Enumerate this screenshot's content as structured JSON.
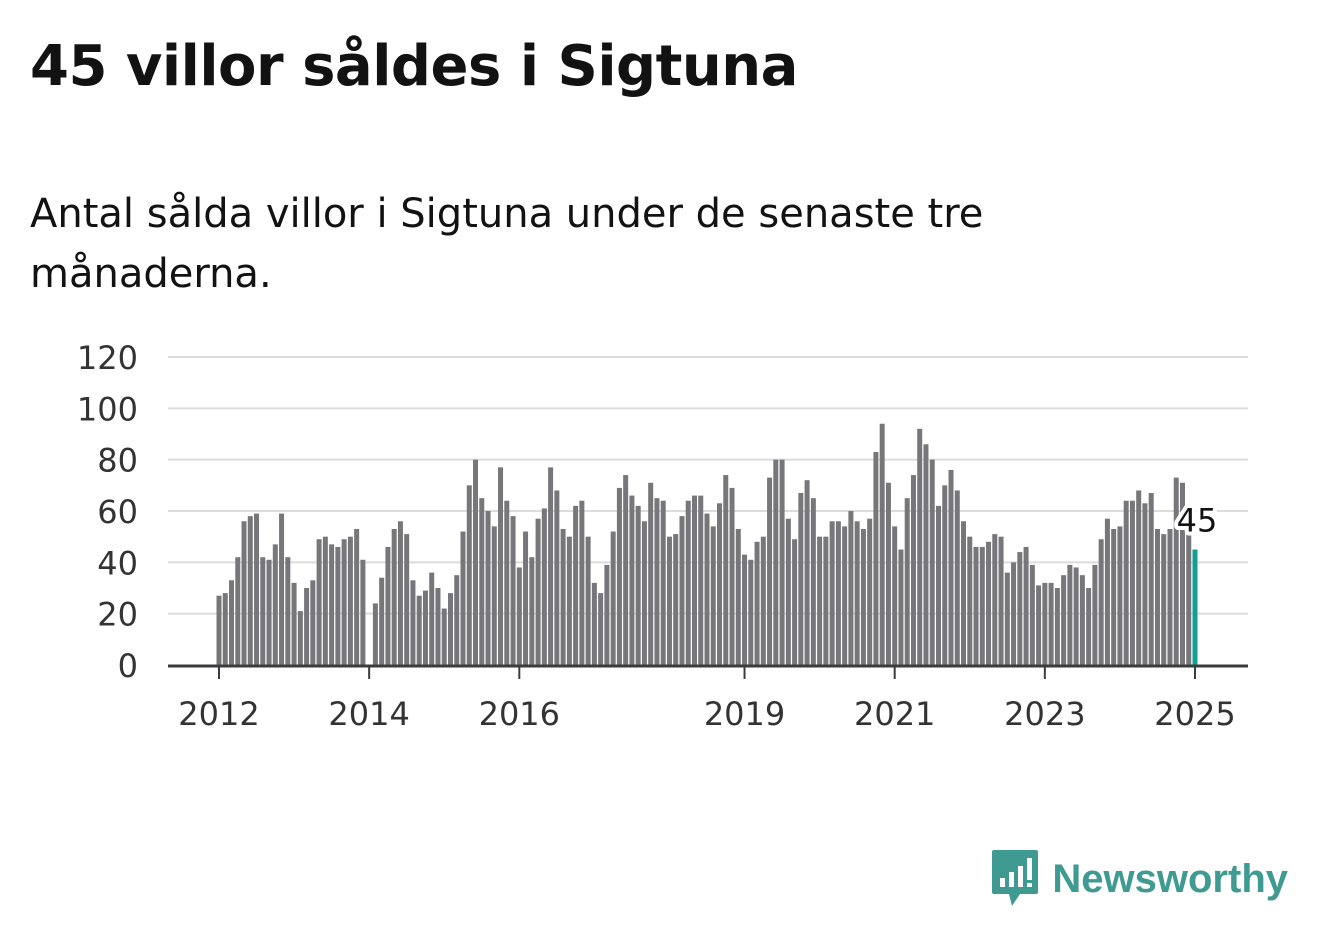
{
  "header": {
    "title": "45 villor såldes i Sigtuna",
    "subtitle": "Antal sålda villor i Sigtuna under de senaste tre månaderna."
  },
  "brand": {
    "name": "Newsworthy",
    "icon": "newsworthy-logo-icon",
    "color": "#3f9a92"
  },
  "colors": {
    "bar": "#77767a",
    "highlight": "#119f96",
    "grid": "#dcdcdc",
    "axis": "#3c3c3c",
    "text": "#333333"
  },
  "chart_data": {
    "type": "bar",
    "title": "45 villor såldes i Sigtuna",
    "subtitle": "Antal sålda villor i Sigtuna under de senaste tre månaderna.",
    "xlabel": "",
    "ylabel": "",
    "ylim": [
      0,
      120
    ],
    "yticks": [
      0,
      20,
      40,
      60,
      80,
      100,
      120
    ],
    "xticks": [
      {
        "label": "2012",
        "date": "2012-01"
      },
      {
        "label": "2014",
        "date": "2014-01"
      },
      {
        "label": "2016",
        "date": "2016-01"
      },
      {
        "label": "2019",
        "date": "2019-01"
      },
      {
        "label": "2021",
        "date": "2021-01"
      },
      {
        "label": "2023",
        "date": "2023-01"
      },
      {
        "label": "2025",
        "date": "2025-01"
      }
    ],
    "grid": true,
    "legend": "none",
    "start": "2012-01",
    "end": "2025-01",
    "values": [
      27,
      28,
      33,
      42,
      56,
      58,
      59,
      42,
      41,
      47,
      59,
      42,
      32,
      21,
      30,
      33,
      49,
      50,
      47,
      46,
      49,
      50,
      53,
      41,
      null,
      24,
      34,
      46,
      53,
      56,
      51,
      33,
      27,
      29,
      36,
      30,
      22,
      28,
      35,
      52,
      70,
      80,
      65,
      60,
      54,
      77,
      64,
      58,
      38,
      52,
      42,
      57,
      61,
      77,
      68,
      53,
      50,
      62,
      64,
      50,
      32,
      28,
      39,
      52,
      69,
      74,
      66,
      62,
      56,
      71,
      65,
      64,
      50,
      51,
      58,
      64,
      66,
      66,
      59,
      54,
      63,
      74,
      69,
      53,
      43,
      41,
      48,
      50,
      73,
      80,
      80,
      57,
      49,
      67,
      72,
      65,
      50,
      50,
      56,
      56,
      54,
      60,
      56,
      53,
      57,
      83,
      94,
      71,
      54,
      45,
      65,
      74,
      92,
      86,
      80,
      62,
      70,
      76,
      68,
      56,
      50,
      46,
      46,
      48,
      51,
      50,
      36,
      40,
      44,
      46,
      39,
      31,
      32,
      32,
      30,
      35,
      39,
      38,
      35,
      30,
      39,
      49,
      57,
      53,
      54,
      64,
      64,
      68,
      63,
      67,
      53,
      51,
      53,
      73,
      71,
      51,
      45
    ],
    "highlight": {
      "date": "2025-01",
      "value": 45,
      "label": "45"
    }
  }
}
